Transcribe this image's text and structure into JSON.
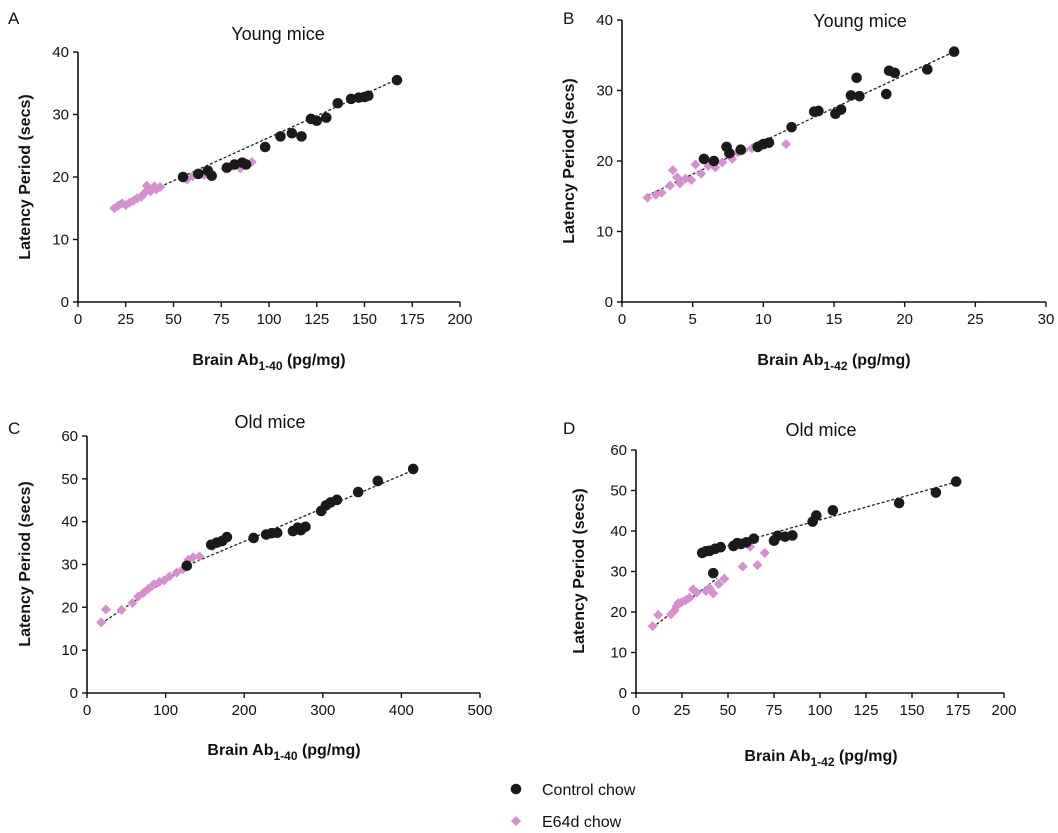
{
  "colors": {
    "control": "#1a1a1a",
    "e64d": "#d88fcf",
    "axis": "#111111"
  },
  "legend": [
    {
      "label": "Control chow",
      "series": "control",
      "marker": "circle"
    },
    {
      "label": "E64d chow",
      "series": "e64d",
      "marker": "diamond"
    }
  ],
  "chart_data": [
    {
      "panel": "A",
      "type": "scatter",
      "title": "Young mice",
      "xlabel": {
        "main": "Brain Ab",
        "sub": "1-40",
        "unit": " (pg/mg)"
      },
      "ylabel": "Latency Period (secs)",
      "xlim": [
        0,
        200
      ],
      "xticks": [
        0,
        25,
        50,
        75,
        100,
        125,
        150,
        175,
        200
      ],
      "ylim": [
        0,
        40
      ],
      "yticks": [
        0,
        10,
        20,
        30,
        40
      ],
      "series": [
        {
          "id": "control",
          "marker": "circle",
          "points": [
            [
              55,
              20
            ],
            [
              63,
              20.5
            ],
            [
              68,
              21
            ],
            [
              70,
              20.2
            ],
            [
              78,
              21.5
            ],
            [
              82,
              22
            ],
            [
              86,
              22.3
            ],
            [
              88,
              22
            ],
            [
              98,
              24.8
            ],
            [
              106,
              26.5
            ],
            [
              112,
              27
            ],
            [
              117,
              26.5
            ],
            [
              122,
              29.3
            ],
            [
              125,
              29
            ],
            [
              130,
              29.5
            ],
            [
              136,
              31.8
            ],
            [
              143,
              32.5
            ],
            [
              147,
              32.7
            ],
            [
              150,
              32.8
            ],
            [
              152,
              33
            ],
            [
              167,
              35.5
            ]
          ]
        },
        {
          "id": "e64d",
          "marker": "diamond",
          "points": [
            [
              19,
              15
            ],
            [
              21,
              15.4
            ],
            [
              23,
              15.8
            ],
            [
              25,
              15.5
            ],
            [
              27,
              15.9
            ],
            [
              29,
              16.2
            ],
            [
              31,
              16.6
            ],
            [
              33,
              16.8
            ],
            [
              35,
              17.5
            ],
            [
              36,
              18.6
            ],
            [
              38,
              17.7
            ],
            [
              40,
              18.5
            ],
            [
              41,
              18
            ],
            [
              43,
              18.4
            ],
            [
              57,
              19.6
            ],
            [
              60,
              20.1
            ],
            [
              62,
              20.5
            ],
            [
              66,
              20.3
            ],
            [
              77,
              21.3
            ],
            [
              81,
              21.8
            ],
            [
              85,
              21.4
            ],
            [
              88,
              22.2
            ],
            [
              91,
              22.4
            ]
          ]
        }
      ],
      "fits": [
        [
          [
            19,
            15.1
          ],
          [
            167,
            35.6
          ]
        ]
      ]
    },
    {
      "panel": "B",
      "type": "scatter",
      "title": "Young mice",
      "xlabel": {
        "main": "Brain Ab",
        "sub": "1-42",
        "unit": " (pg/mg)"
      },
      "ylabel": "Latency Period (secs)",
      "xlim": [
        0,
        30
      ],
      "xticks": [
        0,
        5,
        10,
        15,
        20,
        25,
        30
      ],
      "ylim": [
        0,
        40
      ],
      "yticks": [
        0,
        10,
        20,
        30,
        40
      ],
      "series": [
        {
          "id": "control",
          "marker": "circle",
          "points": [
            [
              5.8,
              20.3
            ],
            [
              6.5,
              20
            ],
            [
              7.4,
              22
            ],
            [
              7.6,
              21.1
            ],
            [
              8.4,
              21.6
            ],
            [
              9.6,
              22
            ],
            [
              10.0,
              22.4
            ],
            [
              10.4,
              22.6
            ],
            [
              12,
              24.8
            ],
            [
              13.6,
              27
            ],
            [
              13.9,
              27.1
            ],
            [
              15.1,
              26.7
            ],
            [
              15.5,
              27.3
            ],
            [
              16.2,
              29.3
            ],
            [
              16.6,
              31.8
            ],
            [
              16.8,
              29.2
            ],
            [
              18.7,
              29.5
            ],
            [
              18.9,
              32.8
            ],
            [
              19.3,
              32.5
            ],
            [
              21.6,
              33
            ],
            [
              23.5,
              35.5
            ]
          ]
        },
        {
          "id": "e64d",
          "marker": "diamond",
          "points": [
            [
              1.8,
              14.8
            ],
            [
              2.4,
              15.2
            ],
            [
              2.8,
              15.5
            ],
            [
              3.4,
              16.5
            ],
            [
              3.6,
              18.7
            ],
            [
              3.9,
              17.7
            ],
            [
              4.1,
              16.8
            ],
            [
              4.5,
              17.5
            ],
            [
              4.9,
              17.3
            ],
            [
              5.2,
              19.5
            ],
            [
              5.6,
              18.2
            ],
            [
              6.1,
              19.3
            ],
            [
              6.6,
              19.1
            ],
            [
              7.1,
              19.8
            ],
            [
              7.8,
              20.3
            ],
            [
              8.2,
              21.2
            ],
            [
              8.6,
              21.5
            ],
            [
              9.2,
              21.8
            ],
            [
              9.7,
              22.3
            ],
            [
              11.6,
              22.4
            ]
          ]
        }
      ],
      "fits": [
        [
          [
            1.8,
            15.1
          ],
          [
            23.5,
            35.5
          ]
        ]
      ]
    },
    {
      "panel": "C",
      "type": "scatter",
      "title": "Old mice",
      "xlabel": {
        "main": "Brain Ab",
        "sub": "1-40",
        "unit": " (pg/mg)"
      },
      "ylabel": "Latency Period (secs)",
      "xlim": [
        0,
        500
      ],
      "xticks": [
        0,
        100,
        200,
        300,
        400,
        500
      ],
      "ylim": [
        0,
        60
      ],
      "yticks": [
        0,
        10,
        20,
        30,
        40,
        50,
        60
      ],
      "series": [
        {
          "id": "control",
          "marker": "circle",
          "points": [
            [
              127,
              29.7
            ],
            [
              158,
              34.6
            ],
            [
              165,
              35.1
            ],
            [
              172,
              35.5
            ],
            [
              178,
              36.4
            ],
            [
              212,
              36.2
            ],
            [
              228,
              37
            ],
            [
              235,
              37.3
            ],
            [
              242,
              37.4
            ],
            [
              262,
              37.8
            ],
            [
              268,
              38.6
            ],
            [
              272,
              38
            ],
            [
              278,
              38.8
            ],
            [
              298,
              42.5
            ],
            [
              304,
              43.8
            ],
            [
              310,
              44.5
            ],
            [
              318,
              45.1
            ],
            [
              345,
              46.9
            ],
            [
              370,
              49.5
            ],
            [
              415,
              52.3
            ]
          ]
        },
        {
          "id": "e64d",
          "marker": "diamond",
          "points": [
            [
              18,
              16.5
            ],
            [
              24,
              19.5
            ],
            [
              44,
              19.4
            ],
            [
              58,
              21
            ],
            [
              65,
              22.5
            ],
            [
              72,
              23.4
            ],
            [
              78,
              24.3
            ],
            [
              85,
              25.4
            ],
            [
              92,
              25.9
            ],
            [
              98,
              26.3
            ],
            [
              105,
              27.2
            ],
            [
              114,
              28.1
            ],
            [
              122,
              28.9
            ],
            [
              129,
              31.1
            ],
            [
              135,
              31.7
            ],
            [
              143,
              31.9
            ],
            [
              160,
              34.2
            ],
            [
              165,
              35.3
            ],
            [
              170,
              35.1
            ],
            [
              176,
              35.9
            ]
          ]
        }
      ],
      "fits": [
        [
          [
            18,
            16.2
          ],
          [
            130,
            30
          ],
          [
            415,
            52
          ]
        ]
      ]
    },
    {
      "panel": "D",
      "type": "scatter",
      "title": "Old mice",
      "xlabel": {
        "main": "Brain Ab",
        "sub": "1-42",
        "unit": " (pg/mg)"
      },
      "ylabel": "Latency Period (secs)",
      "xlim": [
        0,
        200
      ],
      "xticks": [
        0,
        25,
        50,
        75,
        100,
        125,
        150,
        175,
        200
      ],
      "ylim": [
        0,
        60
      ],
      "yticks": [
        0,
        10,
        20,
        30,
        40,
        50,
        60
      ],
      "series": [
        {
          "id": "control",
          "marker": "circle",
          "points": [
            [
              36,
              34.6
            ],
            [
              38,
              35
            ],
            [
              40,
              35.1
            ],
            [
              43,
              35.6
            ],
            [
              46,
              36
            ],
            [
              42,
              29.6
            ],
            [
              53,
              36.3
            ],
            [
              55,
              37
            ],
            [
              57,
              36.8
            ],
            [
              60,
              37.2
            ],
            [
              64,
              38.1
            ],
            [
              75,
              37.6
            ],
            [
              77,
              38.8
            ],
            [
              81,
              38.6
            ],
            [
              85,
              38.9
            ],
            [
              96,
              42.3
            ],
            [
              98,
              43.8
            ],
            [
              107,
              45.1
            ],
            [
              143,
              46.9
            ],
            [
              163,
              49.5
            ],
            [
              174,
              52.2
            ]
          ]
        },
        {
          "id": "e64d",
          "marker": "diamond",
          "points": [
            [
              9,
              16.5
            ],
            [
              12,
              19.3
            ],
            [
              19,
              19.4
            ],
            [
              21,
              20.4
            ],
            [
              22,
              21.4
            ],
            [
              23,
              22.2
            ],
            [
              25,
              22.5
            ],
            [
              27,
              22.9
            ],
            [
              29,
              23.5
            ],
            [
              31,
              25.6
            ],
            [
              33,
              24.8
            ],
            [
              38,
              25.2
            ],
            [
              40,
              25.9
            ],
            [
              42,
              24.6
            ],
            [
              45,
              26.9
            ],
            [
              48,
              28.2
            ],
            [
              58,
              31.2
            ],
            [
              62,
              36.1
            ],
            [
              66,
              31.6
            ],
            [
              70,
              34.6
            ]
          ]
        }
      ],
      "fits": [
        [
          [
            9,
            16.2
          ],
          [
            44,
            28.3
          ]
        ],
        [
          [
            34,
            34.4
          ],
          [
            174,
            52.1
          ]
        ]
      ]
    }
  ]
}
